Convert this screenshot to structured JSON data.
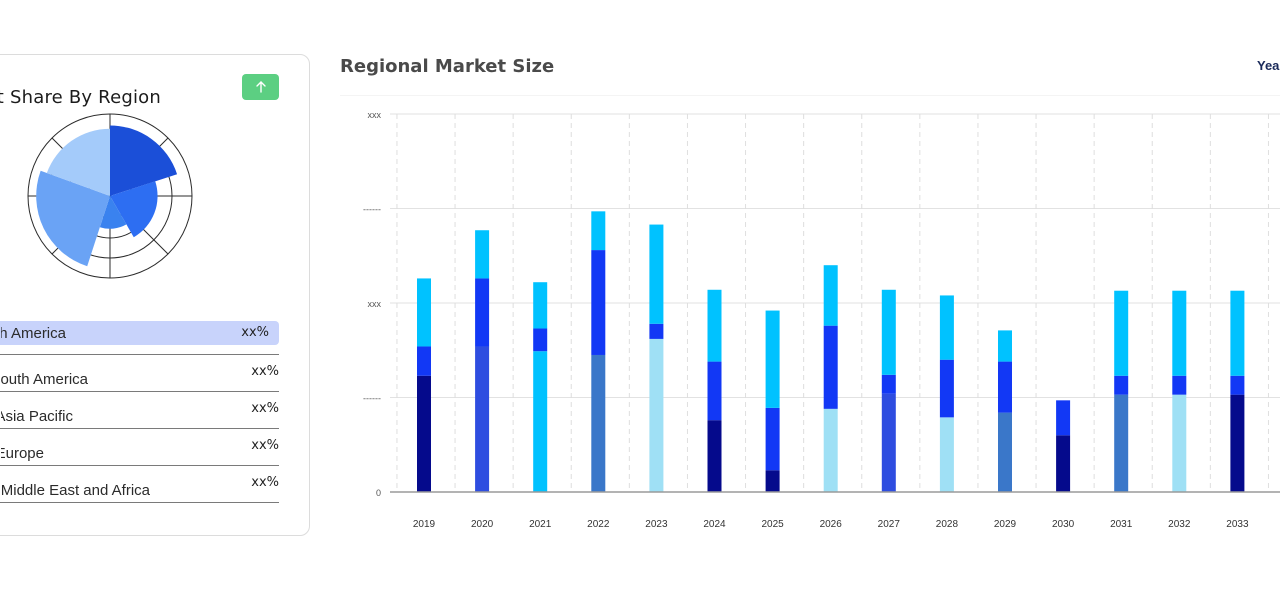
{
  "left_card": {
    "title": "Market Share By Region",
    "regions": [
      {
        "name": "North America",
        "value": "xx%"
      },
      {
        "name": "South America",
        "value": "xx%"
      },
      {
        "name": "Asia Pacific",
        "value": "xx%"
      },
      {
        "name": "Europe",
        "value": "xx%"
      },
      {
        "name": "Middle East and Africa",
        "value": "xx%"
      }
    ],
    "polar_chart": {
      "type": "polar-area",
      "segments": [
        {
          "fraction": 0.86,
          "color": "#1b4fd8"
        },
        {
          "fraction": 0.58,
          "color": "#2d6ef2"
        },
        {
          "fraction": 0.4,
          "color": "#3a82ef"
        },
        {
          "fraction": 0.9,
          "color": "#6aa3f5"
        },
        {
          "fraction": 0.82,
          "color": "#a4cbfa"
        }
      ]
    }
  },
  "chart": {
    "title": "Regional Market Size",
    "year_label": "Year"
  },
  "chart_data": {
    "type": "bar",
    "stacked": true,
    "categories": [
      "2019",
      "2020",
      "2021",
      "2022",
      "2023",
      "2024",
      "2025",
      "2026",
      "2027",
      "2028",
      "2029",
      "2030",
      "2031",
      "2032",
      "2033"
    ],
    "y_tick_labels": [
      "0",
      "------",
      "xxx",
      "------",
      "xxx"
    ],
    "ylim": [
      0,
      4
    ],
    "grid": true,
    "colors": {
      "navy": "#050a8c",
      "royal": "#2e4de0",
      "steel": "#3a77c9",
      "sky": "#00c2ff",
      "pale": "#9fe0f5",
      "blue": "#1238f5"
    },
    "bars": [
      {
        "year": "2019",
        "segments": [
          {
            "value": 1.23,
            "color": "#050a8c"
          },
          {
            "value": 0.31,
            "color": "#1238f5"
          },
          {
            "value": 0.72,
            "color": "#00c2ff"
          }
        ]
      },
      {
        "year": "2020",
        "segments": [
          {
            "value": 1.54,
            "color": "#2e4de0"
          },
          {
            "value": 0.72,
            "color": "#1238f5"
          },
          {
            "value": 0.51,
            "color": "#00c2ff"
          }
        ]
      },
      {
        "year": "2021",
        "segments": [
          {
            "value": 1.49,
            "color": "#00c2ff"
          },
          {
            "value": 0.24,
            "color": "#1238f5"
          },
          {
            "value": 0.49,
            "color": "#00c2ff"
          }
        ]
      },
      {
        "year": "2022",
        "segments": [
          {
            "value": 1.45,
            "color": "#3a77c9"
          },
          {
            "value": 1.11,
            "color": "#1238f5"
          },
          {
            "value": 0.41,
            "color": "#00c2ff"
          }
        ]
      },
      {
        "year": "2023",
        "segments": [
          {
            "value": 1.62,
            "color": "#9fe0f5"
          },
          {
            "value": 0.16,
            "color": "#1238f5"
          },
          {
            "value": 1.05,
            "color": "#00c2ff"
          }
        ]
      },
      {
        "year": "2024",
        "segments": [
          {
            "value": 0.76,
            "color": "#050a8c"
          },
          {
            "value": 0.62,
            "color": "#1238f5"
          },
          {
            "value": 0.76,
            "color": "#00c2ff"
          }
        ]
      },
      {
        "year": "2025",
        "segments": [
          {
            "value": 0.23,
            "color": "#050a8c"
          },
          {
            "value": 0.66,
            "color": "#1238f5"
          },
          {
            "value": 1.03,
            "color": "#00c2ff"
          }
        ]
      },
      {
        "year": "2026",
        "segments": [
          {
            "value": 0.88,
            "color": "#9fe0f5"
          },
          {
            "value": 0.88,
            "color": "#1238f5"
          },
          {
            "value": 0.64,
            "color": "#00c2ff"
          }
        ]
      },
      {
        "year": "2027",
        "segments": [
          {
            "value": 1.04,
            "color": "#2e4de0"
          },
          {
            "value": 0.2,
            "color": "#1238f5"
          },
          {
            "value": 0.9,
            "color": "#00c2ff"
          }
        ]
      },
      {
        "year": "2028",
        "segments": [
          {
            "value": 0.79,
            "color": "#9fe0f5"
          },
          {
            "value": 0.61,
            "color": "#1238f5"
          },
          {
            "value": 0.68,
            "color": "#00c2ff"
          }
        ]
      },
      {
        "year": "2029",
        "segments": [
          {
            "value": 0.84,
            "color": "#3a77c9"
          },
          {
            "value": 0.54,
            "color": "#1238f5"
          },
          {
            "value": 0.33,
            "color": "#00c2ff"
          }
        ]
      },
      {
        "year": "2030",
        "segments": [
          {
            "value": 0.6,
            "color": "#050a8c"
          },
          {
            "value": 0.37,
            "color": "#1238f5"
          }
        ]
      },
      {
        "year": "2031",
        "segments": [
          {
            "value": 1.03,
            "color": "#3a77c9"
          },
          {
            "value": 0.2,
            "color": "#1238f5"
          },
          {
            "value": 0.9,
            "color": "#00c2ff"
          }
        ]
      },
      {
        "year": "2032",
        "segments": [
          {
            "value": 1.03,
            "color": "#9fe0f5"
          },
          {
            "value": 0.2,
            "color": "#1238f5"
          },
          {
            "value": 0.9,
            "color": "#00c2ff"
          }
        ]
      },
      {
        "year": "2033",
        "segments": [
          {
            "value": 1.03,
            "color": "#050a8c"
          },
          {
            "value": 0.2,
            "color": "#1238f5"
          },
          {
            "value": 0.9,
            "color": "#00c2ff"
          }
        ]
      }
    ]
  }
}
